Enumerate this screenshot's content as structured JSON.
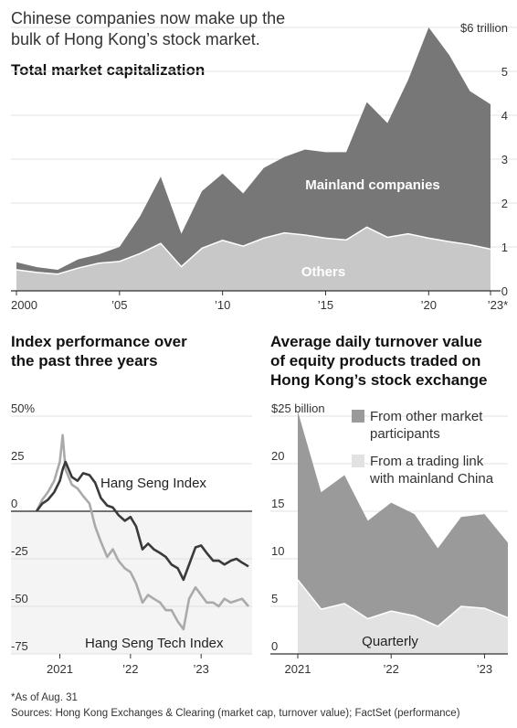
{
  "headline": [
    "Chinese companies now make up the",
    "bulk of Hong Kong’s stock market."
  ],
  "notes": {
    "asof": "*As of Aug. 31",
    "sources": "Sources: Hong Kong Exchanges & Clearing (market cap, turnover value); FactSet (performance)"
  },
  "colors": {
    "dark": "#777777",
    "light": "#c8c8c8",
    "turn_dark": "#9a9a9a",
    "turn_light": "#e2e2e2",
    "line_hsi": "#3a3a3a",
    "line_tech": "#aaaaaa"
  },
  "chart_data": [
    {
      "type": "area",
      "title": "Total market capitalization",
      "x": [
        2000,
        2001,
        2002,
        2003,
        2004,
        2005,
        2006,
        2007,
        2008,
        2009,
        2010,
        2011,
        2012,
        2013,
        2014,
        2015,
        2016,
        2017,
        2018,
        2019,
        2020,
        2021,
        2022,
        2023
      ],
      "x_tick_labels": [
        "2000",
        "’05",
        "’10",
        "’15",
        "’20",
        "’23*"
      ],
      "x_tick_values": [
        2000,
        2005,
        2010,
        2015,
        2020,
        2023
      ],
      "y_tick_labels": [
        "$6 trillion",
        "5",
        "4",
        "3",
        "2",
        "1",
        "0"
      ],
      "y_tick_values": [
        6,
        5,
        4,
        3,
        2,
        1,
        0
      ],
      "ylim": [
        0,
        6
      ],
      "series": [
        {
          "name": "Others",
          "values": [
            0.48,
            0.42,
            0.38,
            0.52,
            0.63,
            0.67,
            0.85,
            1.08,
            0.55,
            0.97,
            1.15,
            1.02,
            1.2,
            1.32,
            1.27,
            1.2,
            1.16,
            1.45,
            1.22,
            1.3,
            1.2,
            1.12,
            1.05,
            0.95
          ]
        },
        {
          "name": "Mainland companies",
          "values": [
            0.17,
            0.12,
            0.1,
            0.2,
            0.2,
            0.33,
            0.85,
            1.52,
            0.75,
            1.3,
            1.52,
            1.2,
            1.6,
            1.73,
            1.95,
            1.96,
            2.0,
            2.85,
            2.6,
            3.5,
            4.8,
            4.25,
            3.5,
            3.3
          ]
        }
      ]
    },
    {
      "type": "line",
      "title": [
        "Index performance over",
        "the past three years"
      ],
      "y_tick_labels": [
        "50%",
        "25",
        "0",
        "-25",
        "-50",
        "-75"
      ],
      "y_tick_values": [
        50,
        25,
        0,
        -25,
        -50,
        -75
      ],
      "x_tick_labels": [
        "2021",
        "’22",
        "’23"
      ],
      "x_tick_values": [
        2021,
        2022,
        2023
      ],
      "ylim": [
        -75,
        50
      ],
      "x": [
        2020.67,
        2020.75,
        2020.83,
        2020.92,
        2021.0,
        2021.04,
        2021.08,
        2021.17,
        2021.25,
        2021.33,
        2021.42,
        2021.5,
        2021.58,
        2021.67,
        2021.75,
        2021.83,
        2021.92,
        2022.0,
        2022.08,
        2022.17,
        2022.25,
        2022.33,
        2022.42,
        2022.5,
        2022.58,
        2022.67,
        2022.75,
        2022.83,
        2022.92,
        2023.0,
        2023.08,
        2023.17,
        2023.25,
        2023.33,
        2023.42,
        2023.5,
        2023.58,
        2023.67
      ],
      "series": [
        {
          "name": "Hang Seng Index",
          "values": [
            0,
            4,
            6,
            10,
            16,
            22,
            26,
            18,
            16,
            20,
            19,
            15,
            7,
            3,
            2,
            -2,
            -5,
            -3,
            -8,
            -20,
            -17,
            -20,
            -22,
            -24,
            -28,
            -30,
            -36,
            -28,
            -19,
            -18,
            -22,
            -26,
            -26,
            -28,
            -26,
            -25,
            -27,
            -29
          ]
        },
        {
          "name": "Hang Seng Tech Index",
          "values": [
            0,
            6,
            10,
            16,
            26,
            40,
            22,
            14,
            12,
            8,
            4,
            -8,
            -16,
            -24,
            -20,
            -26,
            -30,
            -32,
            -38,
            -48,
            -44,
            -46,
            -48,
            -52,
            -52,
            -58,
            -62,
            -46,
            -40,
            -44,
            -48,
            -48,
            -50,
            -46,
            -48,
            -47,
            -46,
            -50
          ]
        }
      ]
    },
    {
      "type": "area",
      "title": [
        "Average daily turnover value",
        "of equity products traded on",
        "Hong Kong’s stock exchange"
      ],
      "x_label_bottom": "Quarterly",
      "y_tick_labels": [
        "$25 billion",
        "20",
        "15",
        "10",
        "5",
        "0"
      ],
      "y_tick_values": [
        25,
        20,
        15,
        10,
        5,
        0
      ],
      "x_tick_labels": [
        "2021",
        "’22",
        "’23"
      ],
      "x_tick_values": [
        2021,
        2022,
        2023
      ],
      "ylim": [
        0,
        25
      ],
      "x": [
        2021.0,
        2021.25,
        2021.5,
        2021.75,
        2022.0,
        2022.25,
        2022.5,
        2022.75,
        2023.0,
        2023.25
      ],
      "series": [
        {
          "name": "From a trading link with mainland China",
          "values": [
            7.8,
            4.7,
            5.3,
            3.7,
            4.5,
            4.0,
            2.9,
            5.0,
            4.8,
            3.8
          ]
        },
        {
          "name": "From other market participants",
          "values": [
            17.7,
            12.3,
            13.5,
            10.3,
            11.4,
            10.7,
            8.2,
            9.4,
            9.9,
            7.9
          ]
        }
      ]
    }
  ]
}
